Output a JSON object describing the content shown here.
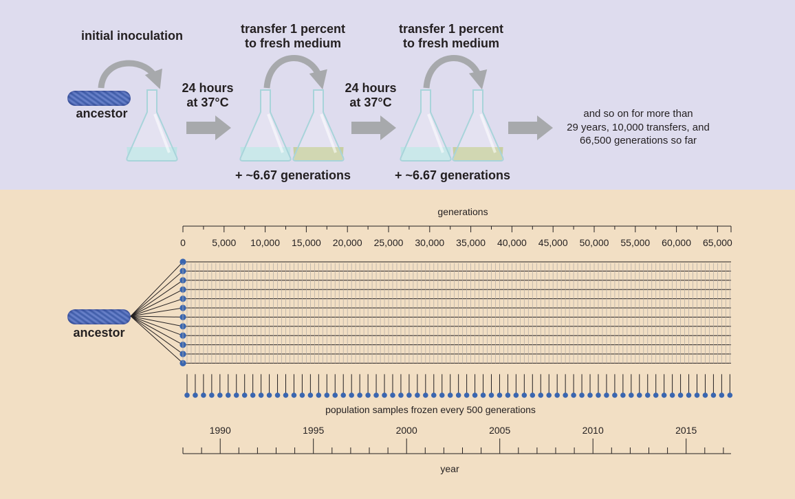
{
  "protocol": {
    "initial_inoculation": "initial inoculation",
    "ancestor": "ancestor",
    "transfer_line1": "transfer 1 percent",
    "transfer_line2": "to fresh medium",
    "incubation_line1": "24 hours",
    "incubation_line2": "at 37°C",
    "generations_gain": "+ ~6.67 generations",
    "summary_line1": "and so on for more than",
    "summary_line2": "29 years, 10,000 transfers, and",
    "summary_line3": "66,500 generations so far"
  },
  "timeline": {
    "ancestor": "ancestor",
    "generations_label": "generations",
    "generation_ticks": [
      "0",
      "5,000",
      "10,000",
      "15,000",
      "20,000",
      "25,000",
      "30,000",
      "35,000",
      "40,000",
      "45,000",
      "50,000",
      "55,000",
      "60,000",
      "65,000"
    ],
    "samples_caption": "population samples frozen every 500 generations",
    "year_ticks": [
      "1990",
      "1995",
      "2000",
      "2005",
      "2010",
      "2015"
    ],
    "year_label": "year",
    "population_count": 12,
    "sample_interval_generations": 500,
    "max_generation": 66500,
    "year_axis_start": 1988,
    "year_axis_end": 2017
  },
  "colors": {
    "top_background": "#dedcee",
    "bottom_background": "#f2dfc4",
    "arrow_gray": "#a7a9ac",
    "dot_blue": "#3a66b0",
    "medium_fresh": "#bfe3e6",
    "medium_grown": "#c7cfa2"
  }
}
